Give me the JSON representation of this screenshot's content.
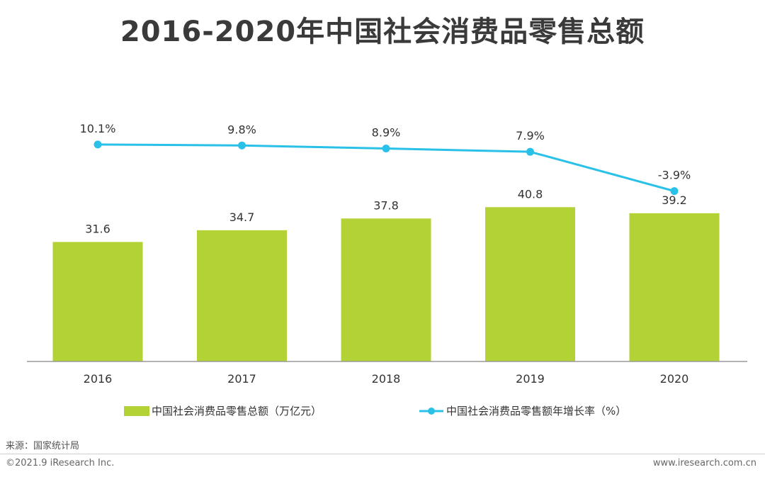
{
  "title": "2016-2020年中国社会消费品零售总额",
  "source": "来源：国家统计局",
  "copyright": "©2021.9 iResearch Inc.",
  "website": "www.iresearch.com.cn",
  "chart_data": {
    "type": "bar",
    "categories": [
      "2016",
      "2017",
      "2018",
      "2019",
      "2020"
    ],
    "series": [
      {
        "name": "中国社会消费品零售总额（万亿元）",
        "type": "bar",
        "values": [
          31.6,
          34.7,
          37.8,
          40.8,
          39.2
        ],
        "labels": [
          "31.6",
          "34.7",
          "37.8",
          "40.8",
          "39.2"
        ],
        "color": "#b2d235"
      },
      {
        "name": "中国社会消费品零售额年增长率（%）",
        "type": "line",
        "values": [
          10.1,
          9.8,
          8.9,
          7.9,
          -3.9
        ],
        "labels": [
          "10.1%",
          "9.8%",
          "8.9%",
          "7.9%",
          "-3.9%"
        ],
        "color": "#29c1e8"
      }
    ],
    "legend_position": "bottom",
    "grid": false
  }
}
